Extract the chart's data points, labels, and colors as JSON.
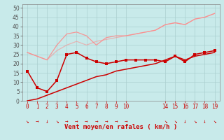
{
  "bg_color": "#c8eaea",
  "grid_color": "#aacfcf",
  "x_labels": [
    "0",
    "1",
    "2",
    "3",
    "4",
    "5",
    "6",
    "7",
    "8",
    "9",
    "10",
    "",
    "",
    "",
    "14",
    "15",
    "16",
    "17",
    "18",
    "19"
  ],
  "x_positions": [
    0,
    1,
    2,
    3,
    4,
    5,
    6,
    7,
    8,
    9,
    10,
    11,
    12,
    13,
    14,
    15,
    16,
    17,
    18,
    19
  ],
  "x_tick_positions": [
    0,
    1,
    2,
    3,
    4,
    5,
    6,
    7,
    8,
    9,
    10,
    14,
    15,
    16,
    17,
    18,
    19
  ],
  "x_tick_labels": [
    "0",
    "1",
    "2",
    "3",
    "4",
    "5",
    "6",
    "7",
    "8",
    "9",
    "10",
    "14",
    "15",
    "16",
    "17",
    "18",
    "19"
  ],
  "xlabel": "Vent moyen/en rafales ( km/h )",
  "ylim": [
    0,
    52
  ],
  "yticks": [
    0,
    5,
    10,
    15,
    20,
    25,
    30,
    35,
    40,
    45,
    50
  ],
  "line_pink1_y": [
    26,
    24,
    22,
    30,
    36,
    37,
    35,
    30,
    34,
    35,
    35,
    36,
    37,
    38,
    41,
    42,
    41,
    44,
    45,
    47
  ],
  "line_pink2_y": [
    26,
    24,
    22,
    27,
    30,
    32,
    30,
    32,
    33,
    34,
    35,
    36,
    37,
    38,
    41,
    42,
    41,
    44,
    45,
    47
  ],
  "line_dark1_y": [
    16,
    7,
    5,
    11,
    25,
    26,
    23,
    21,
    20,
    21,
    22,
    22,
    22,
    22,
    21,
    24,
    21,
    25,
    26,
    27
  ],
  "line_dark2_y": [
    0,
    1,
    3,
    5,
    7,
    9,
    11,
    13,
    14,
    16,
    17,
    18,
    19,
    20,
    22,
    24,
    22,
    24,
    25,
    26
  ],
  "pink_color": "#ff8888",
  "dark_color": "#cc0000",
  "tick_color": "#cc0000",
  "xlabel_color": "#cc0000",
  "ytick_color": "#444444",
  "tick_fontsize": 5.5,
  "xlabel_fontsize": 6.5,
  "arrow_x_positions": [
    0,
    1,
    2,
    3,
    4,
    5,
    6,
    7,
    8,
    9,
    10,
    14,
    15,
    16,
    17,
    18,
    19
  ],
  "arrow_symbols": [
    "↘",
    "→",
    "↓",
    "↘",
    "→",
    "→",
    "→",
    "→",
    "→",
    "→",
    "→",
    "↘",
    "↘",
    "↓",
    "↘",
    "↓",
    "↘"
  ]
}
